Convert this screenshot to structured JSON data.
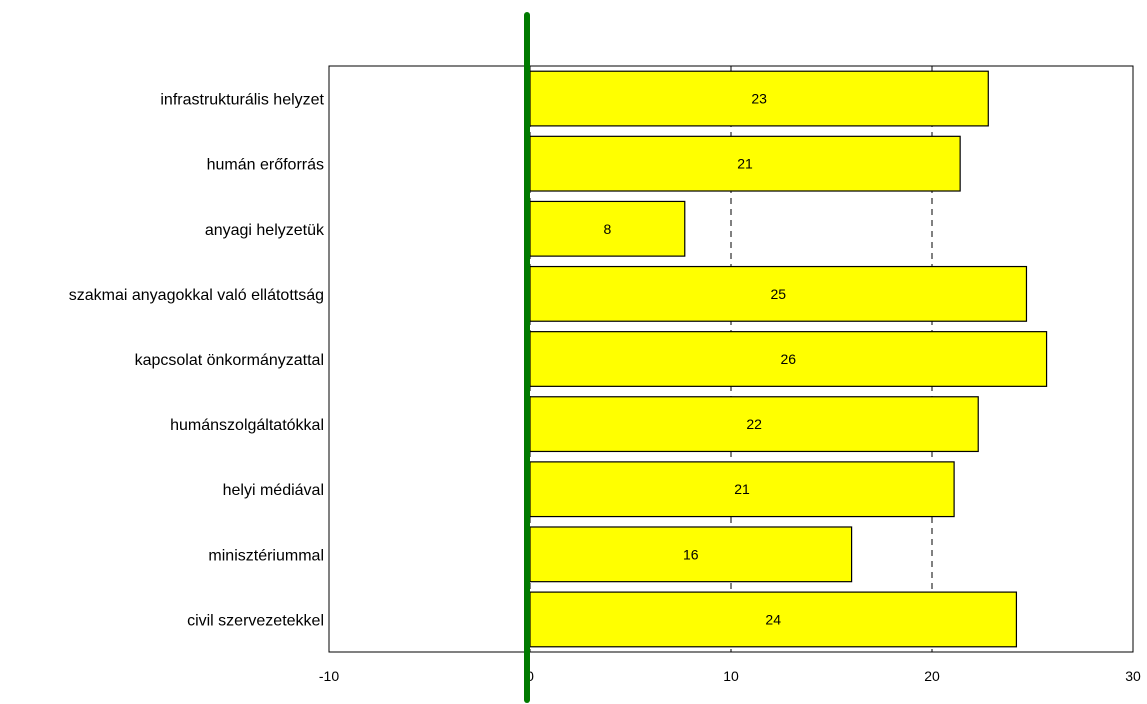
{
  "chart_data": {
    "type": "bar",
    "orientation": "horizontal",
    "categories": [
      "infrastrukturális helyzet",
      "humán erőforrás",
      "anyagi helyzetük",
      "szakmai anyagokkal való ellátottság",
      "kapcsolat önkormányzattal",
      "humánszolgáltatókkal",
      "helyi médiával",
      "minisztériummal",
      "civil szervezetekkel"
    ],
    "values": [
      22.8,
      21.4,
      7.7,
      24.7,
      25.7,
      22.3,
      21.1,
      16.0,
      24.2
    ],
    "data_labels": [
      "23",
      "21",
      "8",
      "25",
      "26",
      "22",
      "21",
      "16",
      "24"
    ],
    "xlim": [
      -10,
      30
    ],
    "xticks": [
      "-10",
      "0",
      "10",
      "20",
      "30"
    ],
    "reference_line": {
      "x": 0,
      "color": "#007a00"
    },
    "grid": "vertical dashed",
    "bar_color": "#ffff00",
    "title": "",
    "xlabel": "",
    "ylabel": ""
  }
}
